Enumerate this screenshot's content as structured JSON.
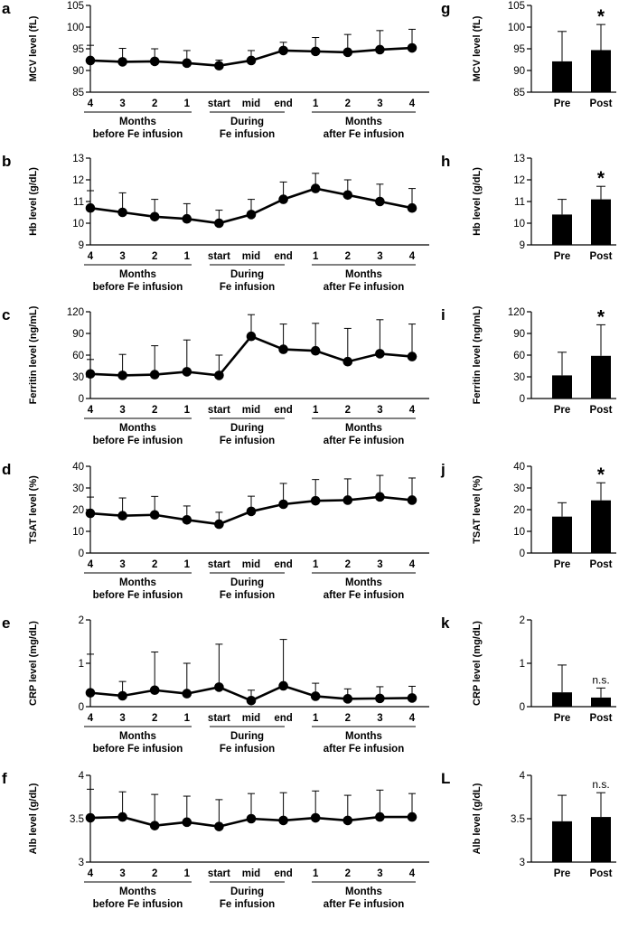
{
  "chart_data": [
    {
      "type": "line",
      "panel": "a",
      "ylabel": "MCV level (fL)",
      "ylim": [
        85,
        105
      ],
      "yticks": [
        85,
        90,
        95,
        100,
        105
      ],
      "categories": [
        "4",
        "3",
        "2",
        "1",
        "start",
        "mid",
        "end",
        "1",
        "2",
        "3",
        "4"
      ],
      "values": [
        92.3,
        92.0,
        92.1,
        91.7,
        91.1,
        92.3,
        94.6,
        94.4,
        94.2,
        94.8,
        95.2
      ],
      "error_upper": [
        95.8,
        95.1,
        95.0,
        94.6,
        92.4,
        94.6,
        96.5,
        97.6,
        98.3,
        99.2,
        99.5
      ],
      "groups": [
        {
          "line1": "Months",
          "line2": "before Fe infusion"
        },
        {
          "line1": "During",
          "line2": "Fe infusion"
        },
        {
          "line1": "Months",
          "line2": "after Fe infusion"
        }
      ]
    },
    {
      "type": "line",
      "panel": "b",
      "ylabel": "Hb level (g/dL)",
      "ylim": [
        9,
        13
      ],
      "yticks": [
        9,
        10,
        11,
        12,
        13
      ],
      "categories": [
        "4",
        "3",
        "2",
        "1",
        "start",
        "mid",
        "end",
        "1",
        "2",
        "3",
        "4"
      ],
      "values": [
        10.7,
        10.5,
        10.3,
        10.2,
        10.0,
        10.4,
        11.1,
        11.6,
        11.3,
        11.0,
        10.7
      ],
      "error_upper": [
        11.5,
        11.4,
        11.1,
        10.9,
        10.6,
        11.1,
        11.9,
        12.3,
        12.0,
        11.8,
        11.6
      ],
      "groups": [
        {
          "line1": "Months",
          "line2": "before Fe infusion"
        },
        {
          "line1": "During",
          "line2": "Fe infusion"
        },
        {
          "line1": "Months",
          "line2": "after Fe infusion"
        }
      ]
    },
    {
      "type": "line",
      "panel": "c",
      "ylabel": "Ferritin level (ng/mL)",
      "ylim": [
        0,
        120
      ],
      "yticks": [
        0,
        30,
        60,
        90,
        120
      ],
      "categories": [
        "4",
        "3",
        "2",
        "1",
        "start",
        "mid",
        "end",
        "1",
        "2",
        "3",
        "4"
      ],
      "values": [
        34,
        32,
        33,
        37,
        32,
        86,
        68,
        66,
        51,
        62,
        58
      ],
      "error_upper": [
        54,
        61,
        73,
        81,
        60,
        116,
        103,
        104,
        97,
        109,
        103
      ],
      "groups": [
        {
          "line1": "Months",
          "line2": "before Fe infusion"
        },
        {
          "line1": "During",
          "line2": "Fe infusion"
        },
        {
          "line1": "Months",
          "line2": "after Fe infusion"
        }
      ]
    },
    {
      "type": "line",
      "panel": "d",
      "ylabel": "TSAT level (%)",
      "ylim": [
        0,
        40
      ],
      "yticks": [
        0,
        10,
        20,
        30,
        40
      ],
      "categories": [
        "4",
        "3",
        "2",
        "1",
        "start",
        "mid",
        "end",
        "1",
        "2",
        "3",
        "4"
      ],
      "values": [
        18.3,
        17.2,
        17.6,
        15.3,
        13.3,
        19.2,
        22.5,
        24.1,
        24.4,
        25.9,
        24.4
      ],
      "error_upper": [
        25.8,
        25.4,
        26.1,
        21.7,
        18.8,
        26.2,
        32.1,
        33.9,
        34.2,
        35.8,
        34.6
      ],
      "groups": [
        {
          "line1": "Months",
          "line2": "before Fe infusion"
        },
        {
          "line1": "During",
          "line2": "Fe infusion"
        },
        {
          "line1": "Months",
          "line2": "after Fe infusion"
        }
      ]
    },
    {
      "type": "line",
      "panel": "e",
      "ylabel": "CRP level (mg/dL)",
      "ylim": [
        0,
        2
      ],
      "yticks": [
        0,
        1,
        2
      ],
      "categories": [
        "4",
        "3",
        "2",
        "1",
        "start",
        "mid",
        "end",
        "1",
        "2",
        "3",
        "4"
      ],
      "values": [
        0.32,
        0.25,
        0.38,
        0.3,
        0.45,
        0.14,
        0.48,
        0.24,
        0.18,
        0.19,
        0.2
      ],
      "error_upper": [
        1.21,
        0.58,
        1.26,
        1.0,
        1.44,
        0.38,
        1.55,
        0.54,
        0.41,
        0.46,
        0.47
      ],
      "groups": [
        {
          "line1": "Months",
          "line2": "before Fe infusion"
        },
        {
          "line1": "During",
          "line2": "Fe infusion"
        },
        {
          "line1": "Months",
          "line2": "after Fe infusion"
        }
      ]
    },
    {
      "type": "line",
      "panel": "f",
      "ylabel": "Alb level (g/dL)",
      "ylim": [
        3,
        4
      ],
      "yticks": [
        3,
        3.5,
        4
      ],
      "categories": [
        "4",
        "3",
        "2",
        "1",
        "start",
        "mid",
        "end",
        "1",
        "2",
        "3",
        "4"
      ],
      "values": [
        3.51,
        3.52,
        3.42,
        3.46,
        3.41,
        3.5,
        3.48,
        3.51,
        3.48,
        3.52,
        3.52
      ],
      "error_upper": [
        3.84,
        3.81,
        3.78,
        3.76,
        3.72,
        3.79,
        3.8,
        3.82,
        3.77,
        3.83,
        3.79
      ],
      "groups": [
        {
          "line1": "Months",
          "line2": "before Fe infusion"
        },
        {
          "line1": "During",
          "line2": "Fe infusion"
        },
        {
          "line1": "Months",
          "line2": "after Fe infusion"
        }
      ]
    },
    {
      "type": "bar",
      "panel": "g",
      "ylabel": "MCV level (fL)",
      "ylim": [
        85,
        105
      ],
      "yticks": [
        85,
        90,
        95,
        100,
        105
      ],
      "categories": [
        "Pre",
        "Post"
      ],
      "values": [
        92.1,
        94.7
      ],
      "error_upper": [
        99.0,
        100.6
      ],
      "significance": "*"
    },
    {
      "type": "bar",
      "panel": "h",
      "ylabel": "Hb level (g/dL)",
      "ylim": [
        9,
        13
      ],
      "yticks": [
        9,
        10,
        11,
        12,
        13
      ],
      "categories": [
        "Pre",
        "Post"
      ],
      "values": [
        10.4,
        11.1
      ],
      "error_upper": [
        11.1,
        11.7
      ],
      "significance": "*"
    },
    {
      "type": "bar",
      "panel": "i",
      "ylabel": "Ferritin level (ng/mL)",
      "ylim": [
        0,
        120
      ],
      "yticks": [
        0,
        30,
        60,
        90,
        120
      ],
      "categories": [
        "Pre",
        "Post"
      ],
      "values": [
        32,
        59
      ],
      "error_upper": [
        64,
        102
      ],
      "significance": "*"
    },
    {
      "type": "bar",
      "panel": "j",
      "ylabel": "TSAT level (%)",
      "ylim": [
        0,
        40
      ],
      "yticks": [
        0,
        10,
        20,
        30,
        40
      ],
      "categories": [
        "Pre",
        "Post"
      ],
      "values": [
        16.8,
        24.3
      ],
      "error_upper": [
        23.2,
        32.4
      ],
      "significance": "*"
    },
    {
      "type": "bar",
      "panel": "k",
      "ylabel": "CRP level (mg/dL)",
      "ylim": [
        0,
        2
      ],
      "yticks": [
        0,
        1,
        2
      ],
      "categories": [
        "Pre",
        "Post"
      ],
      "values": [
        0.33,
        0.21
      ],
      "error_upper": [
        0.96,
        0.43
      ],
      "significance": "n.s."
    },
    {
      "type": "bar",
      "panel": "L",
      "ylabel": "Alb level (g/dL)",
      "ylim": [
        3,
        4
      ],
      "yticks": [
        3,
        3.5,
        4
      ],
      "categories": [
        "Pre",
        "Post"
      ],
      "values": [
        3.47,
        3.52
      ],
      "error_upper": [
        3.77,
        3.8
      ],
      "significance": "n.s."
    }
  ]
}
